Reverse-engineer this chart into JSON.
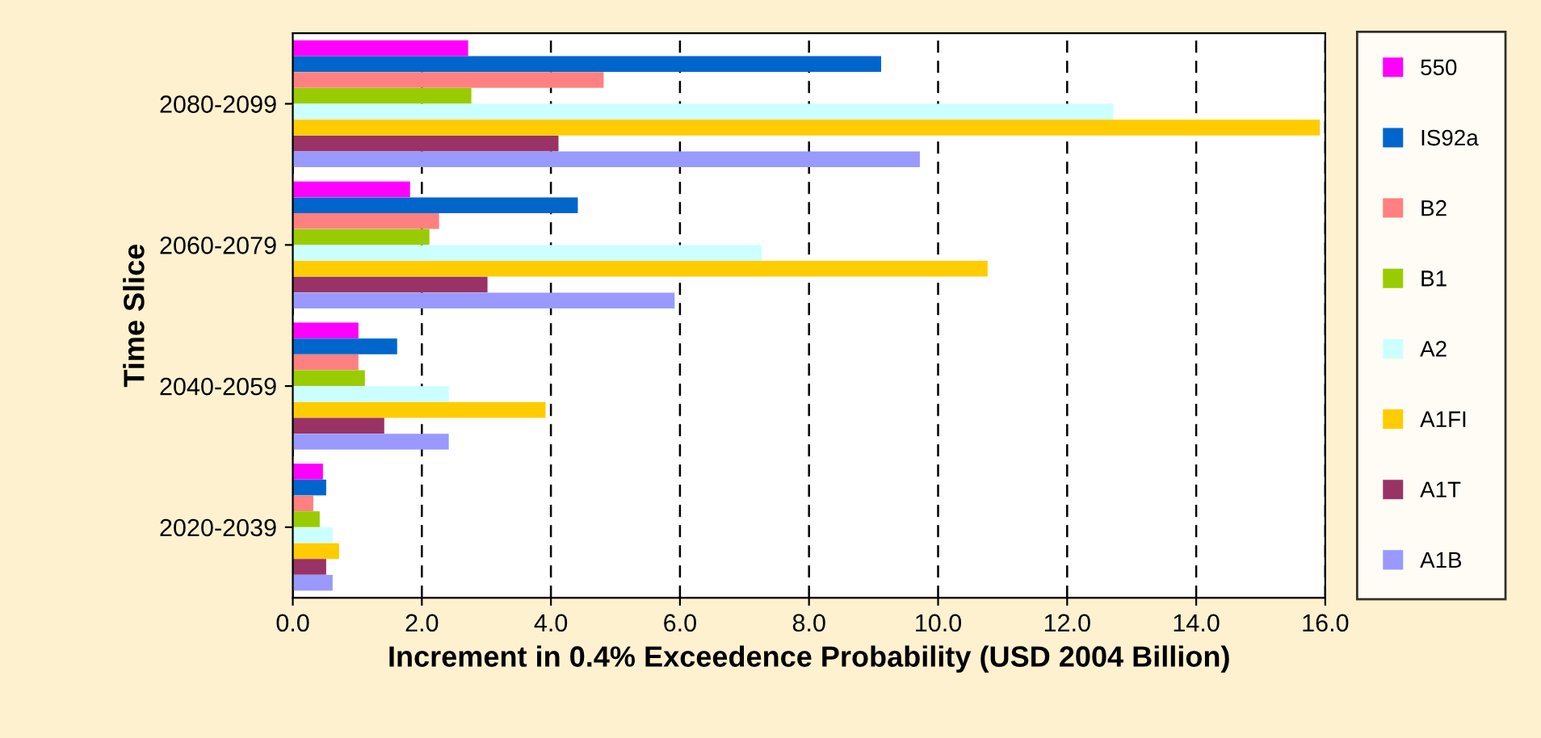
{
  "chart_data": {
    "type": "bar",
    "orientation": "horizontal",
    "xlabel": "Increment in 0.4% Exceedence Probability (USD 2004 Billion)",
    "ylabel": "Time Slice",
    "categories": [
      "2080-2099",
      "2060-2079",
      "2040-2059",
      "2020-2039"
    ],
    "series": [
      {
        "name": "550",
        "color": "#ff00ff",
        "values": [
          2.7,
          1.8,
          1.0,
          0.45
        ]
      },
      {
        "name": "IS92a",
        "color": "#0066cc",
        "values": [
          9.1,
          4.4,
          1.6,
          0.5
        ]
      },
      {
        "name": "B2",
        "color": "#ff8080",
        "values": [
          4.8,
          2.25,
          1.0,
          0.3
        ]
      },
      {
        "name": "B1",
        "color": "#99cc00",
        "values": [
          2.75,
          2.1,
          1.1,
          0.4
        ]
      },
      {
        "name": "A2",
        "color": "#ccffff",
        "values": [
          12.7,
          7.25,
          2.4,
          0.6
        ]
      },
      {
        "name": "A1FI",
        "color": "#ffcc00",
        "values": [
          15.9,
          10.75,
          3.9,
          0.7
        ]
      },
      {
        "name": "A1T",
        "color": "#993366",
        "values": [
          4.1,
          3.0,
          1.4,
          0.5
        ]
      },
      {
        "name": "A1B",
        "color": "#9999ff",
        "values": [
          9.7,
          5.9,
          2.4,
          0.6
        ]
      }
    ],
    "xlim": [
      0,
      16
    ],
    "xticks": [
      {
        "value": 0,
        "label": "0.0"
      },
      {
        "value": 2,
        "label": "2.0"
      },
      {
        "value": 4,
        "label": "4.0"
      },
      {
        "value": 6,
        "label": "6.0"
      },
      {
        "value": 8,
        "label": "8.0"
      },
      {
        "value": 10,
        "label": "10.0"
      },
      {
        "value": 12,
        "label": "12.0"
      },
      {
        "value": 14,
        "label": "14.0"
      },
      {
        "value": 16,
        "label": "16.0"
      }
    ],
    "grid": "x",
    "legend": "right"
  }
}
